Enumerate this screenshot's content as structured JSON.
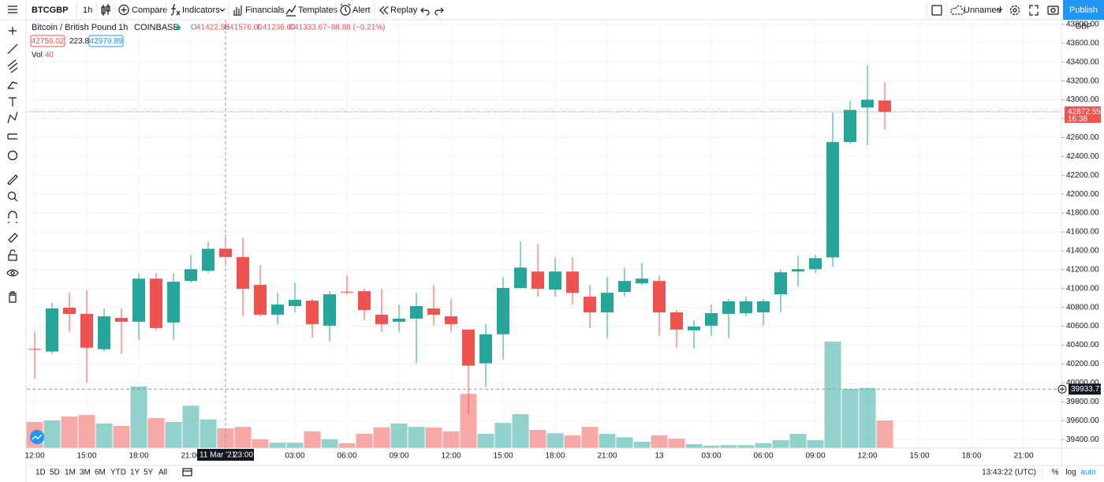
{
  "toolbar": {
    "symbol": "BTCGBP",
    "interval": "1h",
    "compare": "Compare",
    "indicators": "Indicators",
    "financials": "Financials",
    "templates": "Templates",
    "alert": "Alert",
    "replay": "Replay",
    "layout_name": "Unnamed",
    "publish": "Publish"
  },
  "legend": {
    "title": "Bitcoin / British Pound",
    "interval": "1h",
    "exchange": "COINBASE",
    "ohlc": [
      {
        "key": "O",
        "value": "41422.55"
      },
      {
        "key": "H",
        "value": "41576.00"
      },
      {
        "key": "L",
        "value": "41236.00"
      },
      {
        "key": "C",
        "value": "41333.67"
      }
    ],
    "change": "−88.88 (−0.21%)",
    "bid": "42756.02",
    "spread": "223.87",
    "ask": "42979.89",
    "volume_label": "Vol",
    "volume_value": "40"
  },
  "chart_data": {
    "type": "candlestick",
    "open": [
      40360,
      40332,
      40797,
      40731,
      40357,
      40689,
      40648,
      41105,
      40640,
      41080,
      41188,
      41422.55,
      41334,
      41039,
      40723,
      40814,
      40872,
      40606,
      40967,
      40972,
      40723,
      40648,
      40681,
      40789,
      40706,
      40565,
      40207,
      40515,
      41006,
      41180,
      40989,
      41180,
      40914,
      40747,
      40964,
      41055,
      41080,
      40747,
      40557,
      40606,
      40731,
      40739,
      40747,
      40939,
      41180,
      41205,
      41330,
      42552,
      42918,
      42993
    ],
    "high": [
      40540,
      40847,
      40955,
      40980,
      40789,
      40789,
      41163,
      41163,
      41163,
      41355,
      41496,
      41576,
      41538,
      41247,
      40955,
      41064,
      40889,
      40972,
      41139,
      40997,
      40997,
      40830,
      40955,
      41039,
      40889,
      40565,
      40623,
      41122,
      41496,
      41471,
      41330,
      41330,
      41039,
      41122,
      41222,
      41272,
      41139,
      40772,
      40664,
      40830,
      40889,
      40914,
      40889,
      41205,
      41347,
      41355,
      42868,
      42993,
      43367,
      43184
    ],
    "low": [
      40041,
      40307,
      40540,
      39999,
      40332,
      40307,
      40457,
      40556,
      40457,
      41064,
      41163,
      41236,
      40706,
      40706,
      40623,
      40747,
      40481,
      40440,
      40939,
      40664,
      40540,
      40540,
      40207,
      40606,
      40540,
      39667,
      39958,
      40249,
      40997,
      40914,
      40914,
      40831,
      40581,
      40473,
      40914,
      41039,
      40498,
      40374,
      40365,
      40498,
      40473,
      40706,
      40606,
      40747,
      41022,
      41163,
      41230,
      42535,
      42519,
      42685
    ],
    "close": [
      40355,
      40789,
      40731,
      40373,
      40706,
      40648,
      41105,
      40581,
      41072,
      41205,
      41421,
      41333.67,
      40997,
      40723,
      40830,
      40880,
      40623,
      40939,
      40960,
      40773,
      40623,
      40681,
      40814,
      40723,
      40623,
      40183,
      40515,
      41006,
      41222,
      40997,
      41180,
      40955,
      40747,
      40955,
      41080,
      41105,
      40747,
      40565,
      40598,
      40739,
      40864,
      40864,
      40864,
      41172,
      41205,
      41322,
      42552,
      42893,
      43001,
      42872.55
    ],
    "volume": [
      53,
      56,
      64,
      67,
      50,
      45,
      125,
      61,
      53,
      86,
      58,
      40,
      43,
      18,
      11,
      11,
      34,
      18,
      10,
      29,
      42,
      50,
      43,
      42,
      34,
      110,
      29,
      51,
      69,
      37,
      30,
      26,
      43,
      29,
      22,
      13,
      26,
      19,
      8,
      5,
      6,
      6,
      10,
      16,
      29,
      16,
      216,
      120,
      122,
      56
    ],
    "up_color": "#26a69a",
    "down_color": "#ef5350",
    "ylim": [
      39309,
      43849
    ],
    "yticks": [
      {
        "value": 39400,
        "label": "39400.00"
      },
      {
        "value": 39600,
        "label": "39600.00"
      },
      {
        "value": 39800,
        "label": "39800.00"
      },
      {
        "value": 40000,
        "label": "40000.00"
      },
      {
        "value": 40200,
        "label": "40200.00"
      },
      {
        "value": 40400,
        "label": "40400.00"
      },
      {
        "value": 40600,
        "label": "40600.00"
      },
      {
        "value": 40800,
        "label": "40800.00"
      },
      {
        "value": 41000,
        "label": "41000.00"
      },
      {
        "value": 41200,
        "label": "41200.00"
      },
      {
        "value": 41400,
        "label": "41400.00"
      },
      {
        "value": 41600,
        "label": "41600.00"
      },
      {
        "value": 41800,
        "label": "41800.00"
      },
      {
        "value": 42000,
        "label": "42000.00"
      },
      {
        "value": 42200,
        "label": "42200.00"
      },
      {
        "value": 42400,
        "label": "42400.00"
      },
      {
        "value": 42600,
        "label": "42600.00"
      },
      {
        "value": 42800,
        "label": "42800.00"
      },
      {
        "value": 43000,
        "label": "43000.00"
      },
      {
        "value": 43200,
        "label": "43200.00"
      },
      {
        "value": 43400,
        "label": "43400.00"
      },
      {
        "value": 43600,
        "label": "43600.00"
      },
      {
        "value": 43800,
        "label": "43800.00"
      }
    ],
    "grid": true,
    "currency": "GBP",
    "last_price": {
      "value": 42872.55,
      "label": "42872.55"
    },
    "countdown": "16:38",
    "crosshair_price": {
      "value": 39933.71,
      "label": "39933.71"
    },
    "crosshair_date": "11 Mar '21",
    "crosshair_hour": "23:00",
    "time_labels": [
      "12:00",
      "15:00",
      "18:00",
      "21:00",
      "03:00",
      "06:00",
      "09:00",
      "12:00",
      "15:00",
      "18:00",
      "21:00",
      "13",
      "03:00",
      "06:00",
      "09:00",
      "12:00",
      "15:00",
      "18:00",
      "21:00"
    ]
  },
  "bottom": {
    "ranges": [
      "1D",
      "5D",
      "1M",
      "3M",
      "6M",
      "YTD",
      "1Y",
      "5Y",
      "All"
    ],
    "clock": "13:43:22 (UTC)",
    "percent": "%",
    "log": "log",
    "auto": "auto"
  }
}
